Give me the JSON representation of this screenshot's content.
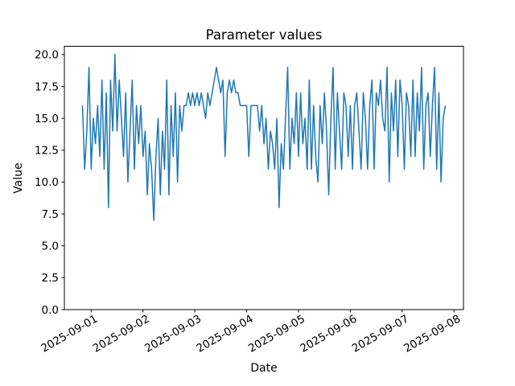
{
  "figure": {
    "background": "#ffffff",
    "spine_color": "#000000"
  },
  "chart_data": {
    "type": "line",
    "title": "Parameter values",
    "xlabel": "Date",
    "ylabel": "Value",
    "grid": false,
    "legend": "none",
    "line_color": "#1f77b4",
    "ylim": [
      0,
      20.65
    ],
    "y_tick_values": [
      0.0,
      2.5,
      5.0,
      7.5,
      10.0,
      12.5,
      15.0,
      17.5,
      20.0
    ],
    "y_tick_labels": [
      "0.0",
      "2.5",
      "5.0",
      "7.5",
      "10.0",
      "12.5",
      "15.0",
      "17.5",
      "20.0"
    ],
    "x_tick_labels": [
      "2025-09-01",
      "2025-09-02",
      "2025-09-03",
      "2025-09-04",
      "2025-09-05",
      "2025-09-06",
      "2025-09-07",
      "2025-09-08"
    ],
    "x_tick_rotation_deg": 30,
    "x": {
      "start": "2025-08-31 20:00",
      "end": "2025-09-07 20:00",
      "step_hours": 1,
      "first_tick_point_index": 4,
      "points_per_tick": 24
    },
    "series": [
      {
        "name": "parameter-values",
        "color": "#1f77b4",
        "values": [
          16,
          11,
          14,
          19,
          11,
          15,
          13,
          16,
          12,
          18,
          11,
          17,
          8,
          18,
          14,
          20,
          14,
          18,
          15,
          12,
          17,
          10,
          14,
          18,
          11,
          16,
          13,
          16,
          12,
          14,
          9,
          13,
          11,
          7,
          12,
          15,
          9,
          14,
          11,
          18,
          9,
          16,
          12,
          17,
          10,
          16,
          14,
          16,
          16,
          17,
          16,
          17,
          16,
          17,
          16,
          17,
          16,
          15,
          17,
          16,
          17,
          18,
          19,
          18,
          17,
          18,
          12,
          17,
          18,
          17,
          18,
          17,
          17,
          16,
          16,
          16,
          16,
          12,
          16,
          16,
          16,
          16,
          14,
          16,
          13,
          15,
          11,
          14,
          13,
          11,
          15,
          8,
          13,
          11,
          15,
          19,
          11,
          15,
          13,
          17,
          12,
          17,
          13,
          15,
          11,
          18,
          11,
          16,
          12,
          10,
          16,
          13,
          17,
          14,
          9,
          15,
          19,
          11,
          17,
          14,
          11,
          17,
          16,
          12,
          16,
          11,
          16,
          17,
          14,
          11,
          17,
          15,
          11,
          16,
          18,
          11,
          17,
          16,
          18,
          15,
          14,
          19,
          10,
          17,
          14,
          18,
          12,
          18,
          16,
          11,
          17,
          16,
          12,
          18,
          12,
          17,
          14,
          19,
          11,
          16,
          17,
          12,
          16,
          19,
          11,
          17,
          10,
          15,
          16
        ]
      }
    ]
  }
}
